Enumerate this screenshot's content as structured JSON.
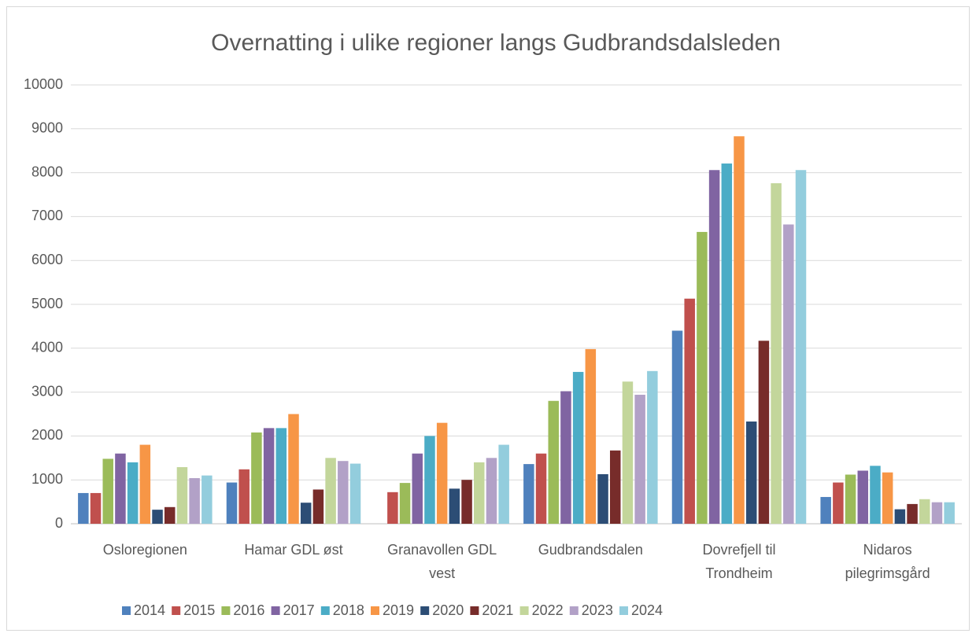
{
  "chart_data": {
    "type": "bar",
    "title": "Overnatting i ulike regioner langs Gudbrandsdalsleden",
    "categories": [
      "Osloregionen",
      "Hamar GDL øst",
      "Granavollen GDL vest",
      "Gudbrandsdalen",
      "Dovrefjell til Trondheim",
      "Nidaros pilegrimsgård"
    ],
    "series": [
      {
        "name": "2014",
        "color": "#4f81bd",
        "values": [
          700,
          940,
          null,
          1360,
          4400,
          610
        ]
      },
      {
        "name": "2015",
        "color": "#c0504d",
        "values": [
          700,
          1240,
          720,
          1600,
          5130,
          940
        ]
      },
      {
        "name": "2016",
        "color": "#9bbb59",
        "values": [
          1480,
          2080,
          930,
          2800,
          6650,
          1120
        ]
      },
      {
        "name": "2017",
        "color": "#8064a2",
        "values": [
          1600,
          2180,
          1600,
          3020,
          8060,
          1210
        ]
      },
      {
        "name": "2018",
        "color": "#4bacc6",
        "values": [
          1400,
          2180,
          2000,
          3460,
          8210,
          1320
        ]
      },
      {
        "name": "2019",
        "color": "#f79646",
        "values": [
          1800,
          2500,
          2300,
          3980,
          8830,
          1170
        ]
      },
      {
        "name": "2020",
        "color": "#2c4d75",
        "values": [
          320,
          480,
          800,
          1130,
          2330,
          330
        ]
      },
      {
        "name": "2021",
        "color": "#772c2a",
        "values": [
          380,
          780,
          1000,
          1670,
          4170,
          450
        ]
      },
      {
        "name": "2022",
        "color": "#c3d69b",
        "values": [
          1290,
          1500,
          1400,
          3240,
          7760,
          560
        ]
      },
      {
        "name": "2023",
        "color": "#b2a1c7",
        "values": [
          1040,
          1430,
          1500,
          2940,
          6820,
          490
        ]
      },
      {
        "name": "2024",
        "color": "#93cddd",
        "values": [
          1100,
          1370,
          1800,
          3480,
          8060,
          490
        ]
      }
    ],
    "ylim": [
      0,
      10000
    ],
    "yticks": [
      0,
      1000,
      2000,
      3000,
      4000,
      5000,
      6000,
      7000,
      8000,
      9000,
      10000
    ],
    "grid": true
  }
}
